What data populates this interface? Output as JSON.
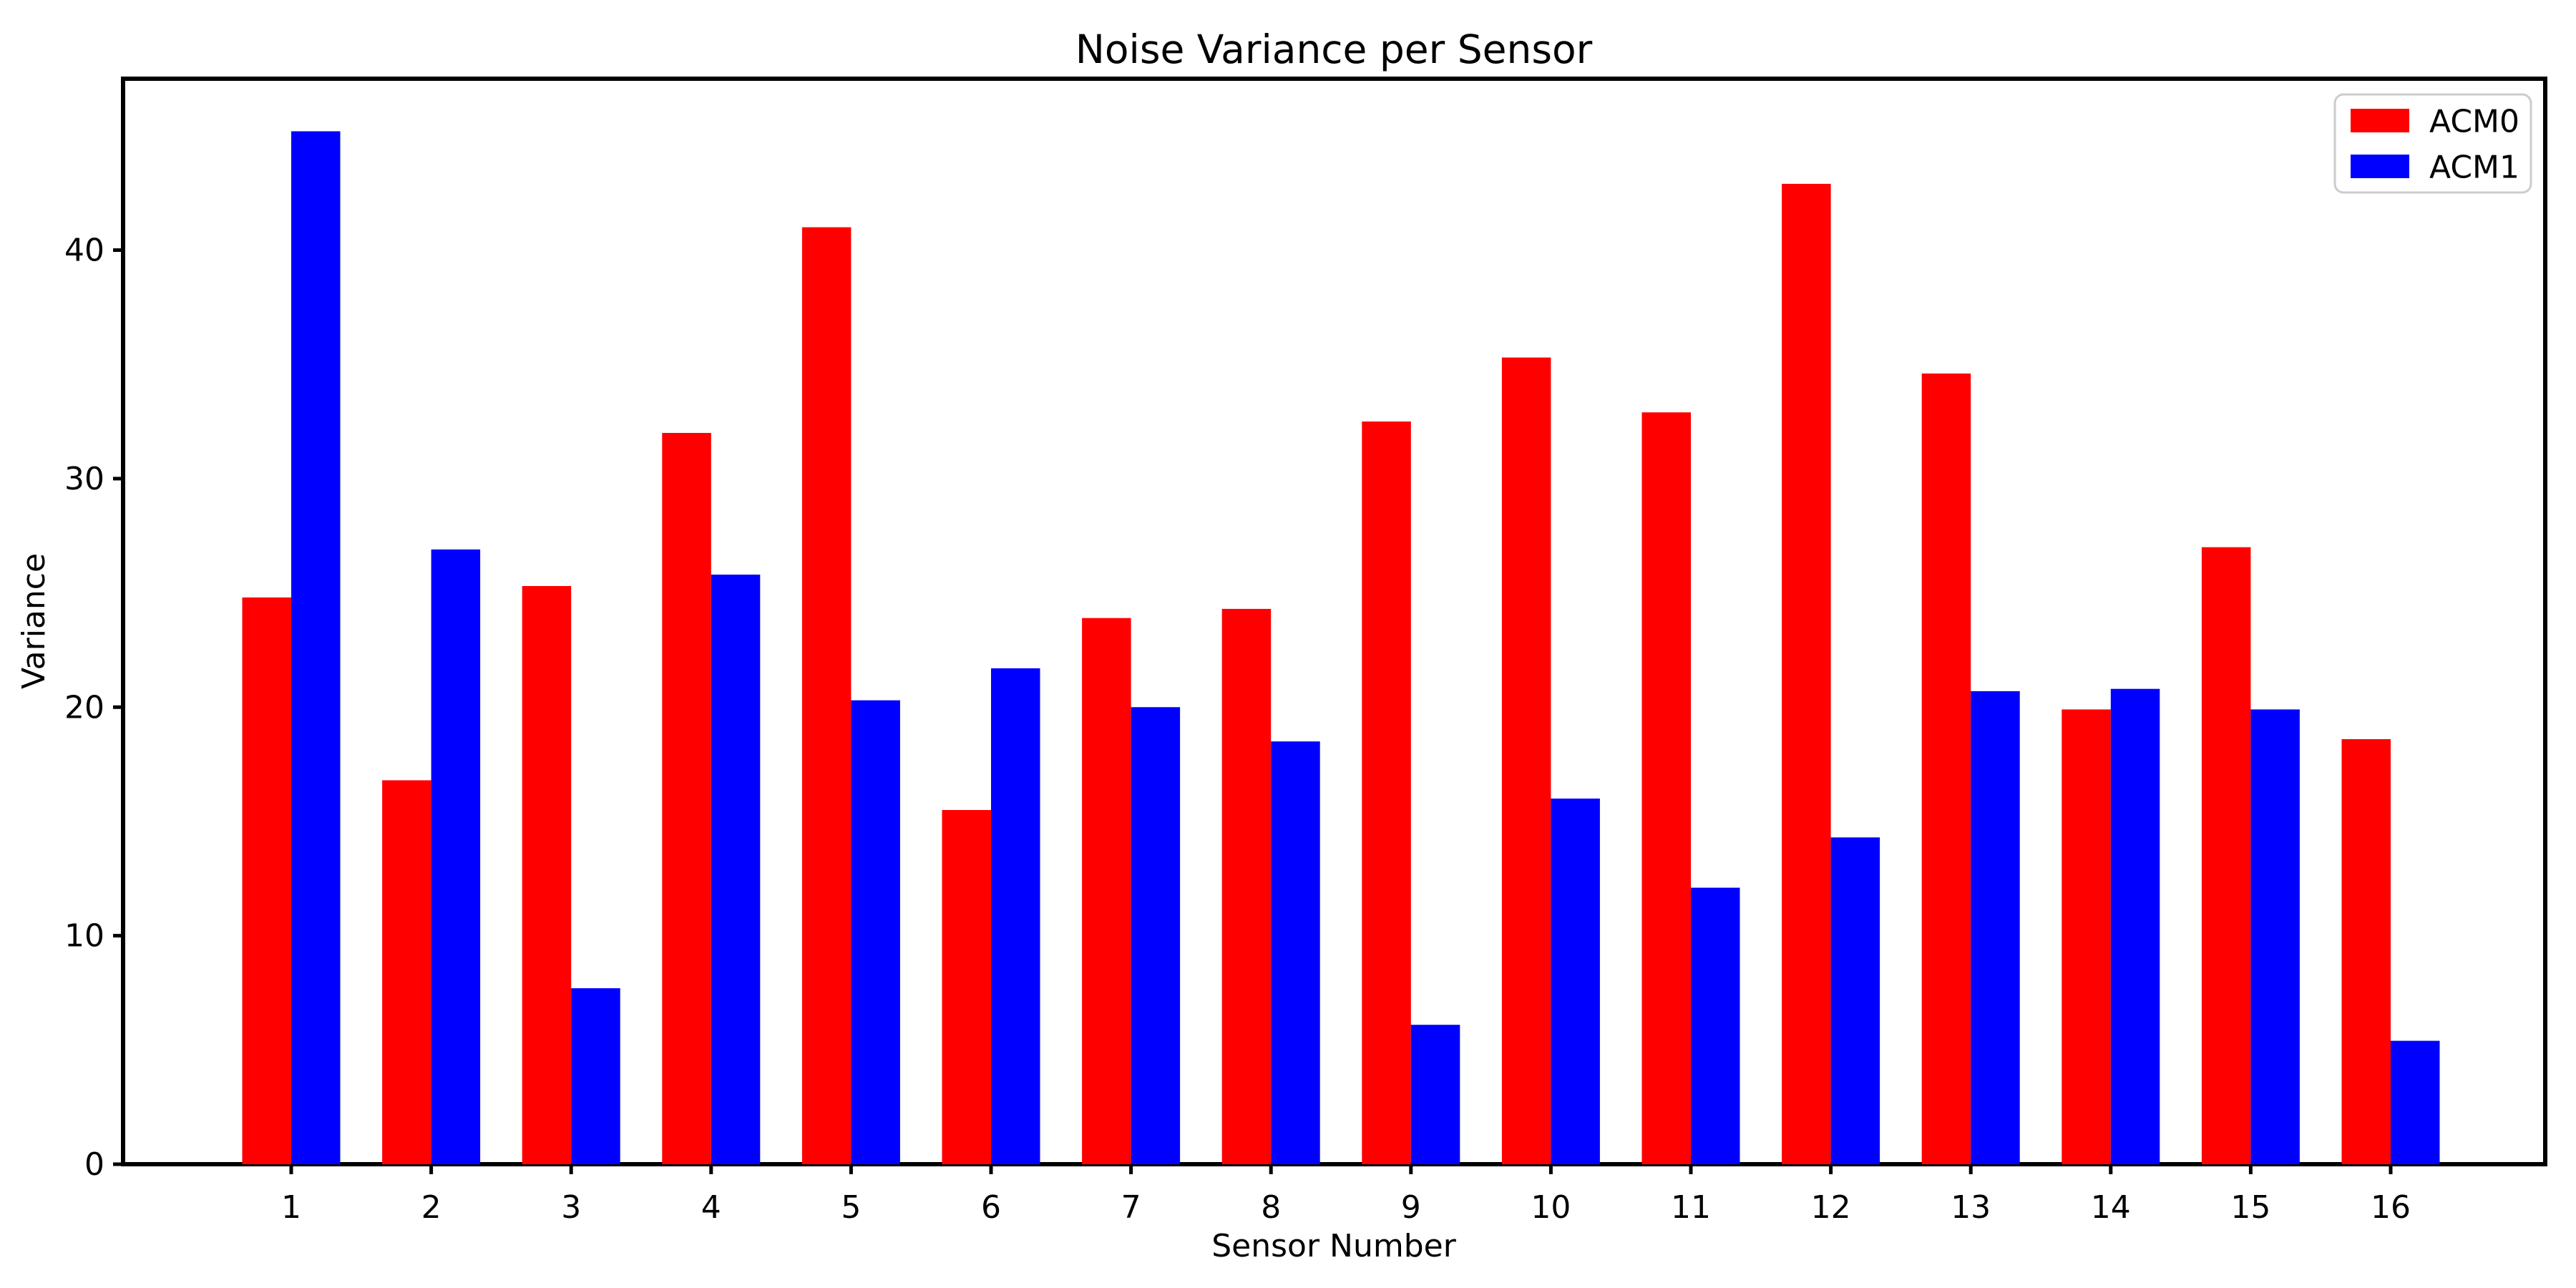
{
  "chart_data": {
    "type": "bar",
    "title": "Noise Variance per Sensor",
    "xlabel": "Sensor Number",
    "ylabel": "Variance",
    "categories": [
      "1",
      "2",
      "3",
      "4",
      "5",
      "6",
      "7",
      "8",
      "9",
      "10",
      "11",
      "12",
      "13",
      "14",
      "15",
      "16"
    ],
    "series": [
      {
        "name": "ACM0",
        "color": "#ff0000",
        "values": [
          24.8,
          16.8,
          25.3,
          32.0,
          41.0,
          15.5,
          23.9,
          24.3,
          32.5,
          35.3,
          32.9,
          42.9,
          34.6,
          19.9,
          27.0,
          18.6
        ]
      },
      {
        "name": "ACM1",
        "color": "#0000ff",
        "values": [
          45.2,
          26.9,
          7.7,
          25.8,
          20.3,
          21.7,
          20.0,
          18.5,
          6.1,
          16.0,
          12.1,
          14.3,
          20.7,
          20.8,
          19.9,
          5.4
        ]
      }
    ],
    "ylim": [
      0,
      47.5
    ],
    "yticks": [
      0,
      10,
      20,
      30,
      40
    ],
    "grid": false,
    "legend_position": "upper right",
    "bar_group_width": 0.7,
    "background_color": "#ffffff",
    "axis_color": "#000000",
    "legend_border_color": "#cccccc"
  }
}
